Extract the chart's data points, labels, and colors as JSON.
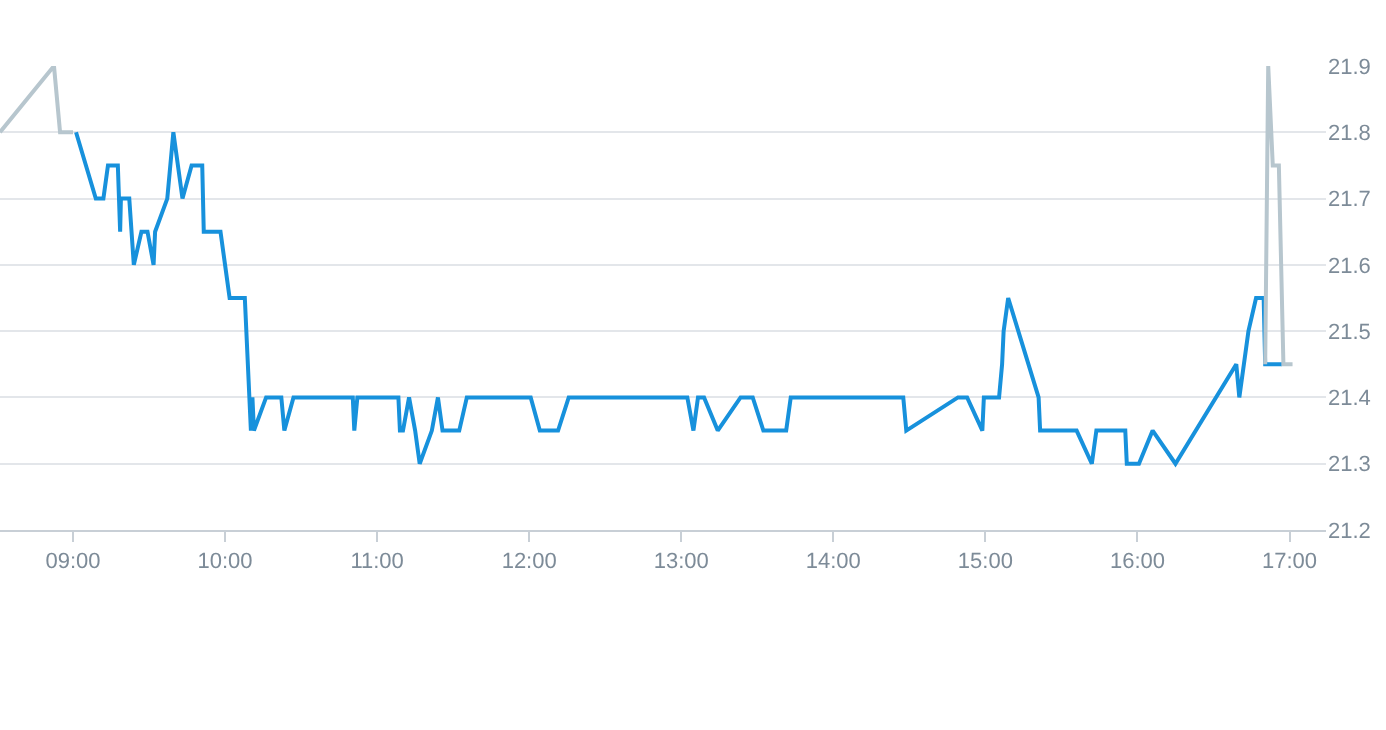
{
  "chart_data": {
    "type": "line",
    "x": [
      9.02,
      9.15,
      9.2,
      9.23,
      9.295,
      9.31,
      9.315,
      9.37,
      9.4,
      9.45,
      9.49,
      9.53,
      9.54,
      9.62,
      9.66,
      9.72,
      9.78,
      9.85,
      9.86,
      9.97,
      10.0,
      10.03,
      10.13,
      10.17,
      10.18,
      10.19,
      10.27,
      10.37,
      10.39,
      10.45,
      10.84,
      10.85,
      10.87,
      11.14,
      11.15,
      11.17,
      11.21,
      11.25,
      11.28,
      11.36,
      11.4,
      11.43,
      11.54,
      11.59,
      12.01,
      12.07,
      12.19,
      12.26,
      13.04,
      13.08,
      13.11,
      13.15,
      13.24,
      13.39,
      13.47,
      13.54,
      13.69,
      13.72,
      14.46,
      14.48,
      14.82,
      14.88,
      14.98,
      14.99,
      15.09,
      15.11,
      15.12,
      15.15,
      15.35,
      15.36,
      15.6,
      15.7,
      15.73,
      15.92,
      15.93,
      16.01,
      16.1,
      16.25,
      16.65,
      16.67,
      16.73,
      16.78,
      16.83,
      16.84,
      16.95
    ],
    "series": [
      {
        "color": "#b7c6ce",
        "x": [
          8.52,
          8.875,
          8.915,
          9.0
        ],
        "values": [
          21.8,
          21.9,
          21.8,
          21.8
        ]
      },
      {
        "color": "#1791dc",
        "values": [
          21.8,
          21.7,
          21.7,
          21.75,
          21.75,
          21.65,
          21.7,
          21.7,
          21.6,
          21.65,
          21.65,
          21.6,
          21.65,
          21.7,
          21.8,
          21.7,
          21.75,
          21.75,
          21.65,
          21.65,
          21.6,
          21.55,
          21.55,
          21.35,
          21.4,
          21.35,
          21.4,
          21.4,
          21.35,
          21.4,
          21.4,
          21.35,
          21.4,
          21.4,
          21.35,
          21.35,
          21.4,
          21.35,
          21.3,
          21.35,
          21.4,
          21.35,
          21.35,
          21.4,
          21.4,
          21.35,
          21.35,
          21.4,
          21.4,
          21.35,
          21.4,
          21.4,
          21.35,
          21.4,
          21.4,
          21.35,
          21.35,
          21.4,
          21.4,
          21.35,
          21.4,
          21.4,
          21.35,
          21.4,
          21.4,
          21.45,
          21.5,
          21.55,
          21.4,
          21.35,
          21.35,
          21.3,
          21.35,
          21.35,
          21.3,
          21.3,
          21.35,
          21.3,
          21.45,
          21.4,
          21.5,
          21.55,
          21.55,
          21.45,
          21.45
        ]
      },
      {
        "color": "#b7c6ce",
        "x": [
          16.84,
          16.86,
          16.89,
          16.93,
          16.96,
          17.02
        ],
        "values": [
          21.45,
          21.9,
          21.75,
          21.75,
          21.45,
          21.45
        ]
      }
    ],
    "xlim": [
      8.52,
      17.24
    ],
    "xticks": [
      {
        "value": 9,
        "label": "09:00"
      },
      {
        "value": 10,
        "label": "10:00"
      },
      {
        "value": 11,
        "label": "11:00"
      },
      {
        "value": 12,
        "label": "12:00"
      },
      {
        "value": 13,
        "label": "13:00"
      },
      {
        "value": 14,
        "label": "14:00"
      },
      {
        "value": 15,
        "label": "15:00"
      },
      {
        "value": 16,
        "label": "16:00"
      },
      {
        "value": 17,
        "label": "17:00"
      }
    ],
    "ylim": [
      21.2,
      21.9
    ],
    "yticks": [
      21.2,
      21.3,
      21.4,
      21.5,
      21.6,
      21.7,
      21.8,
      21.9
    ],
    "grid": "y",
    "marker": "none",
    "line_style": "solid"
  }
}
